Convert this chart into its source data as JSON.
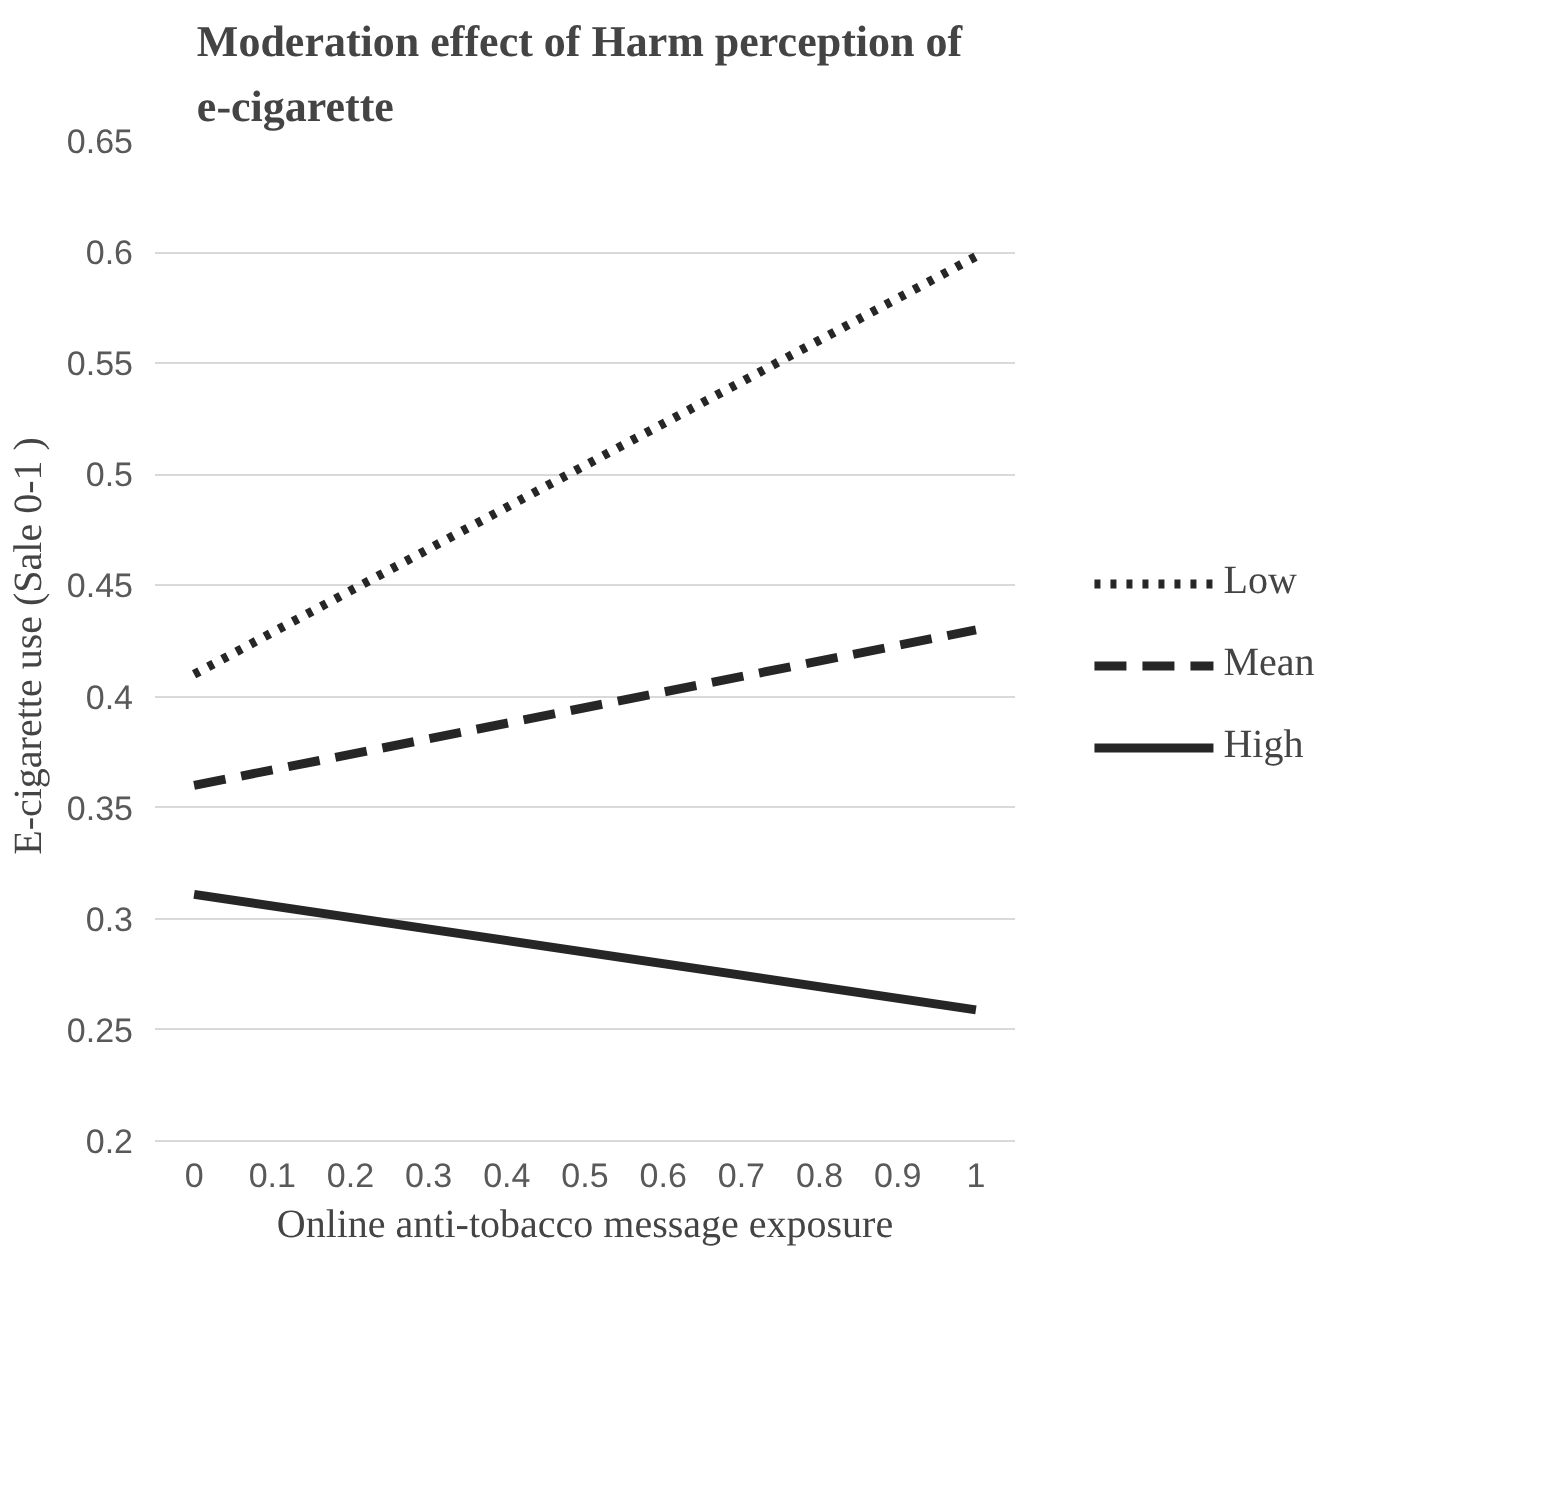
{
  "chart_data": {
    "type": "line",
    "title": "Moderation effect of  Harm perception of e-cigarette",
    "xlabel": "Online anti-tobacco message exposure",
    "ylabel": "E-cigarette use (Sale  0-1 )",
    "x": [
      0,
      1
    ],
    "series": [
      {
        "name": "Low",
        "color": "#262626",
        "values": [
          0.41,
          0.598
        ],
        "line_style": "dotted"
      },
      {
        "name": "Mean",
        "color": "#262626",
        "values": [
          0.36,
          0.43
        ],
        "line_style": "dashed"
      },
      {
        "name": "High",
        "color": "#262626",
        "values": [
          0.311,
          0.259
        ],
        "line_style": "solid"
      }
    ],
    "xlim": [
      -0.05,
      1.05
    ],
    "xticks": [
      0,
      0.1,
      0.2,
      0.3,
      0.4,
      0.5,
      0.6,
      0.7,
      0.8,
      0.9,
      1
    ],
    "ylim": [
      0.2,
      0.65
    ],
    "yticks": [
      0.2,
      0.25,
      0.3,
      0.35,
      0.4,
      0.45,
      0.5,
      0.55,
      0.6,
      0.65
    ],
    "grid": "y",
    "legend": "right",
    "marker": "none"
  }
}
